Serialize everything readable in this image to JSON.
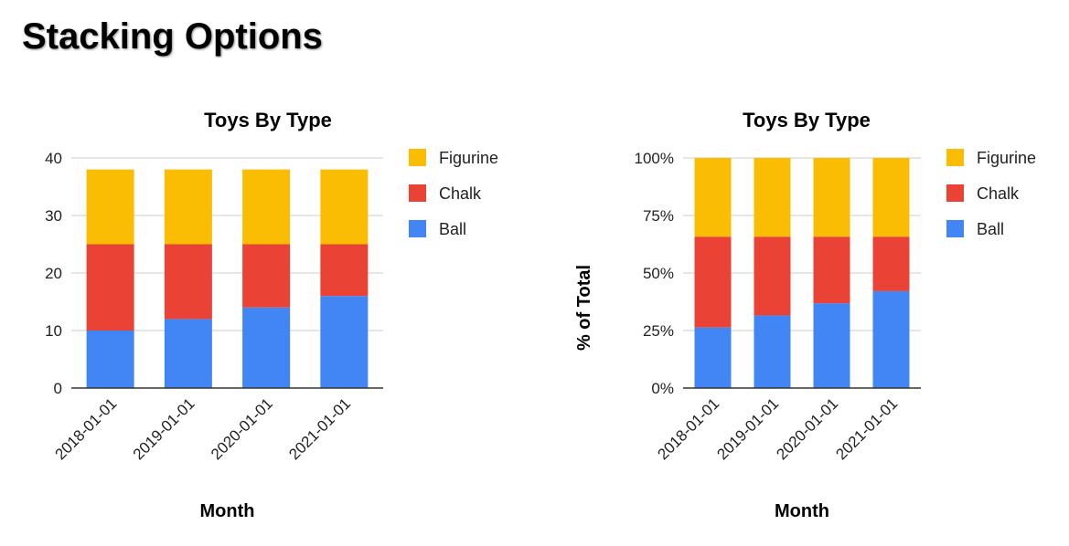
{
  "page_title": "Stacking Options",
  "chart_data": [
    {
      "type": "bar",
      "stacking": "absolute",
      "title": "Toys By Type",
      "xlabel": "Month",
      "ylabel": "",
      "ylim": [
        0,
        40
      ],
      "yticks": [
        0,
        10,
        20,
        30,
        40
      ],
      "ytick_labels": [
        "0",
        "10",
        "20",
        "30",
        "40"
      ],
      "categories": [
        "2018-01-01",
        "2019-01-01",
        "2020-01-01",
        "2021-01-01"
      ],
      "series": [
        {
          "name": "Ball",
          "color": "#4285f4",
          "values": [
            10,
            12,
            14,
            16
          ]
        },
        {
          "name": "Chalk",
          "color": "#ea4335",
          "values": [
            15,
            13,
            11,
            9
          ]
        },
        {
          "name": "Figurine",
          "color": "#fbbc04",
          "values": [
            13,
            13,
            13,
            13
          ]
        }
      ],
      "legend": {
        "position": "right",
        "order": [
          "Figurine",
          "Chalk",
          "Ball"
        ]
      },
      "grid": true
    },
    {
      "type": "bar",
      "stacking": "percent",
      "title": "Toys By Type",
      "xlabel": "Month",
      "ylabel": "% of Total",
      "ylim": [
        0,
        1
      ],
      "yticks": [
        0,
        0.25,
        0.5,
        0.75,
        1
      ],
      "ytick_labels": [
        "0%",
        "25%",
        "50%",
        "75%",
        "100%"
      ],
      "categories": [
        "2018-01-01",
        "2019-01-01",
        "2020-01-01",
        "2021-01-01"
      ],
      "series": [
        {
          "name": "Ball",
          "color": "#4285f4",
          "values": [
            10,
            12,
            14,
            16
          ]
        },
        {
          "name": "Chalk",
          "color": "#ea4335",
          "values": [
            15,
            13,
            11,
            9
          ]
        },
        {
          "name": "Figurine",
          "color": "#fbbc04",
          "values": [
            13,
            13,
            13,
            13
          ]
        }
      ],
      "legend": {
        "position": "right",
        "order": [
          "Figurine",
          "Chalk",
          "Ball"
        ]
      },
      "grid": true
    }
  ]
}
